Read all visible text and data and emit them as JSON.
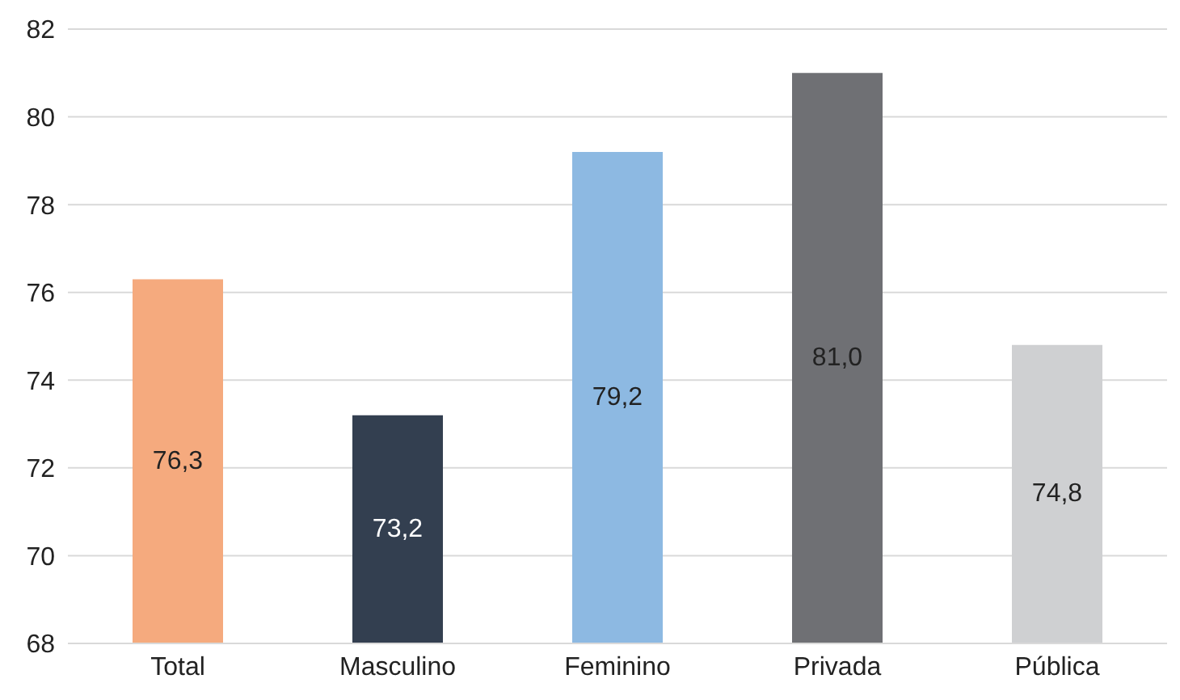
{
  "chart_data": {
    "type": "bar",
    "categories": [
      "Total",
      "Masculino",
      "Feminino",
      "Privada",
      "Pública"
    ],
    "values": [
      76.3,
      73.2,
      79.2,
      81.0,
      74.8
    ],
    "colors": [
      "#f5aa7e",
      "#333f50",
      "#8db9e2",
      "#6f7074",
      "#cfd0d2"
    ],
    "value_labels": [
      "76,3",
      "73,2",
      "79,2",
      "81,0",
      "74,8"
    ],
    "ylim": [
      68,
      82
    ],
    "yticks": [
      68,
      70,
      72,
      74,
      76,
      78,
      80,
      82
    ],
    "grid": "y"
  }
}
